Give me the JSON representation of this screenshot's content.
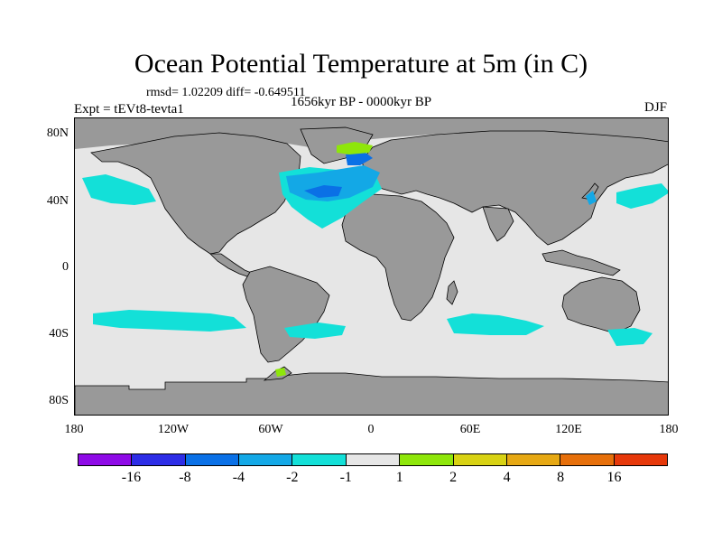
{
  "title": "Ocean Potential Temperature at 5m (in C)",
  "stats": "rmsd= 1.02209 diff= -0.649511",
  "expt": "Expt = tEVt8-tevta1",
  "period": "1656kyr BP - 0000kyr BP",
  "season": "DJF",
  "axes": {
    "lat_labels": [
      "80N",
      "40N",
      "0",
      "40S",
      "80S"
    ],
    "lon_labels": [
      "180",
      "120W",
      "60W",
      "0",
      "60E",
      "120E",
      "180"
    ]
  },
  "colorbar": {
    "colors": [
      "#8e0ae6",
      "#2d2de6",
      "#0a70e6",
      "#13a8e6",
      "#13e0d8",
      "#e6e6e6",
      "#8ee60a",
      "#d8d213",
      "#e6a813",
      "#e66f0a",
      "#e6380a"
    ],
    "labels": [
      "-16",
      "-8",
      "-4",
      "-2",
      "-1",
      "1",
      "2",
      "4",
      "8",
      "16"
    ]
  },
  "colors": {
    "land": "#999999",
    "no_change": "#e6e6e6",
    "cool_small": "#13e0d8",
    "cool_mid": "#13a8e6",
    "cool_strong": "#0a70e6",
    "warm_small": "#8ee60a"
  }
}
